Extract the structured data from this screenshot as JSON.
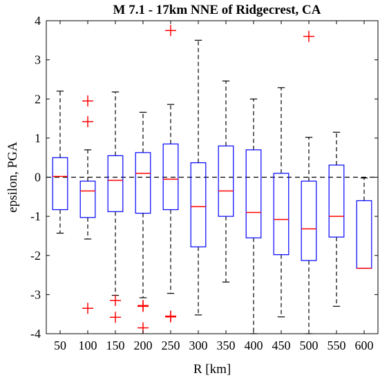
{
  "chart_data": {
    "type": "boxplot",
    "title": "M 7.1 - 17km NNE of Ridgecrest, CA",
    "xlabel": "R [km]",
    "ylabel": "epsilon, PGA",
    "categories": [
      "50",
      "100",
      "150",
      "200",
      "250",
      "300",
      "350",
      "400",
      "450",
      "500",
      "550",
      "600"
    ],
    "ylim": [
      -4,
      4
    ],
    "yticks": [
      -4,
      -3,
      -2,
      -1,
      0,
      1,
      2,
      3,
      4
    ],
    "reference_line": 0,
    "colors": {
      "box": "#0000ff",
      "median": "#ff0000",
      "whisker": "#000000",
      "outlier": "#ff0000"
    },
    "boxes": [
      {
        "category": "50",
        "whisker_low": -1.43,
        "q1": -0.83,
        "median": 0.02,
        "q3": 0.5,
        "whisker_high": 2.2,
        "outliers": []
      },
      {
        "category": "100",
        "whisker_low": -1.58,
        "q1": -1.03,
        "median": -0.35,
        "q3": -0.1,
        "whisker_high": 0.7,
        "outliers": [
          1.95,
          1.42,
          -3.35
        ]
      },
      {
        "category": "150",
        "whisker_low": -3.02,
        "q1": -0.88,
        "median": -0.08,
        "q3": 0.55,
        "whisker_high": 2.18,
        "outliers": [
          -3.15,
          -3.58
        ]
      },
      {
        "category": "200",
        "whisker_low": -3.08,
        "q1": -0.92,
        "median": 0.1,
        "q3": 0.63,
        "whisker_high": 1.66,
        "outliers": [
          -3.28,
          -3.3,
          -3.85
        ]
      },
      {
        "category": "250",
        "whisker_low": -2.97,
        "q1": -0.83,
        "median": -0.05,
        "q3": 0.85,
        "whisker_high": 1.86,
        "outliers": [
          3.75,
          -3.55,
          -3.57
        ]
      },
      {
        "category": "300",
        "whisker_low": -3.52,
        "q1": -1.78,
        "median": -0.75,
        "q3": 0.37,
        "whisker_high": 3.5,
        "outliers": []
      },
      {
        "category": "350",
        "whisker_low": -2.68,
        "q1": -1.0,
        "median": -0.35,
        "q3": 0.8,
        "whisker_high": 2.46,
        "outliers": []
      },
      {
        "category": "400",
        "whisker_low": -4.0,
        "q1": -1.55,
        "median": -0.9,
        "q3": 0.7,
        "whisker_high": 2.0,
        "outliers": []
      },
      {
        "category": "450",
        "whisker_low": -3.57,
        "q1": -1.98,
        "median": -1.08,
        "q3": 0.1,
        "whisker_high": 2.29,
        "outliers": []
      },
      {
        "category": "500",
        "whisker_low": -4.0,
        "q1": -2.13,
        "median": -1.32,
        "q3": -0.1,
        "whisker_high": 1.02,
        "outliers": [
          3.6
        ]
      },
      {
        "category": "550",
        "whisker_low": -3.3,
        "q1": -1.53,
        "median": -1.0,
        "q3": 0.31,
        "whisker_high": 1.15,
        "outliers": []
      },
      {
        "category": "600",
        "whisker_low": -2.33,
        "q1": -2.33,
        "median": -2.33,
        "q3": -0.6,
        "whisker_high": -0.02,
        "outliers": []
      }
    ],
    "grid": false,
    "legend": "none"
  }
}
